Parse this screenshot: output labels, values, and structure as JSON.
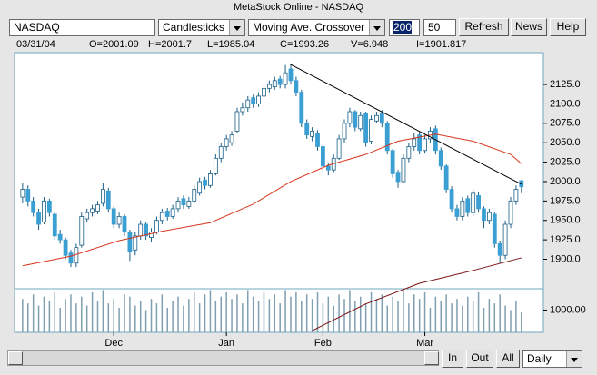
{
  "window": {
    "title": "MetaStock Online - NASDAQ",
    "symbol": "NASDAQ",
    "chart_style": "Candlesticks",
    "indicator": "Moving Ave. Crossover",
    "period_1": "200",
    "period_2": "50",
    "buttons": [
      "Refresh",
      "News",
      "Help"
    ],
    "zoom_buttons": [
      "In",
      "Out",
      "All"
    ],
    "interval": "Daily",
    "info": [
      "03/31/04",
      "O=2001.09",
      "H=2001.7",
      "L=1985.04",
      "C=1993.26",
      "V=6.948",
      "I=1901.817"
    ]
  },
  "chart_data": {
    "type": "candlestick",
    "up_color": "#ffffff",
    "down_color": "#3a9fd2",
    "xlim": [
      -1.5,
      97.1
    ],
    "xticks": [
      {
        "value": 17,
        "label": "Dec"
      },
      {
        "value": 38,
        "label": "Jan"
      },
      {
        "value": 56,
        "label": "Feb"
      },
      {
        "value": 75,
        "label": "Mar"
      }
    ],
    "ylim": [
      1862,
      2166
    ],
    "yticks": [
      {
        "value": 1900,
        "label": "1900.0"
      },
      {
        "value": 1925,
        "label": "1925.0"
      },
      {
        "value": 1950,
        "label": "1950.0"
      },
      {
        "value": 1975,
        "label": "1975.0"
      },
      {
        "value": 2000,
        "label": "2000.0"
      },
      {
        "value": 2025,
        "label": "2025.0"
      },
      {
        "value": 2050,
        "label": "2050.0"
      },
      {
        "value": 2075,
        "label": "2075.0"
      },
      {
        "value": 2100,
        "label": "2100.0"
      },
      {
        "value": 2125,
        "label": "2125.0"
      }
    ],
    "candles": [
      [
        1980,
        1998,
        1972,
        1990
      ],
      [
        1990,
        1995,
        1968,
        1975
      ],
      [
        1975,
        1980,
        1955,
        1960
      ],
      [
        1960,
        1965,
        1938,
        1945
      ],
      [
        1948,
        1980,
        1945,
        1975
      ],
      [
        1975,
        1978,
        1955,
        1960
      ],
      [
        1958,
        1962,
        1925,
        1930
      ],
      [
        1932,
        1938,
        1920,
        1925
      ],
      [
        1925,
        1928,
        1900,
        1905
      ],
      [
        1908,
        1912,
        1890,
        1895
      ],
      [
        1895,
        1920,
        1890,
        1915
      ],
      [
        1918,
        1960,
        1915,
        1955
      ],
      [
        1952,
        1965,
        1948,
        1960
      ],
      [
        1960,
        1970,
        1955,
        1965
      ],
      [
        1962,
        1975,
        1958,
        1970
      ],
      [
        1972,
        1998,
        1968,
        1990
      ],
      [
        1988,
        1992,
        1960,
        1965
      ],
      [
        1965,
        1968,
        1940,
        1945
      ],
      [
        1945,
        1960,
        1940,
        1955
      ],
      [
        1955,
        1958,
        1930,
        1935
      ],
      [
        1935,
        1938,
        1898,
        1910
      ],
      [
        1912,
        1935,
        1905,
        1930
      ],
      [
        1930,
        1950,
        1925,
        1945
      ],
      [
        1945,
        1948,
        1925,
        1930
      ],
      [
        1928,
        1940,
        1922,
        1935
      ],
      [
        1935,
        1955,
        1932,
        1950
      ],
      [
        1950,
        1965,
        1945,
        1960
      ],
      [
        1962,
        1966,
        1950,
        1955
      ],
      [
        1955,
        1970,
        1952,
        1965
      ],
      [
        1965,
        1980,
        1960,
        1975
      ],
      [
        1978,
        1982,
        1965,
        1970
      ],
      [
        1968,
        1980,
        1965,
        1975
      ],
      [
        1975,
        1995,
        1972,
        1990
      ],
      [
        1985,
        2005,
        1982,
        2000
      ],
      [
        2002,
        2006,
        1990,
        1995
      ],
      [
        1995,
        2015,
        1992,
        2010
      ],
      [
        2010,
        2035,
        2008,
        2030
      ],
      [
        2030,
        2050,
        2025,
        2045
      ],
      [
        2045,
        2060,
        2040,
        2055
      ],
      [
        2050,
        2065,
        2046,
        2060
      ],
      [
        2065,
        2095,
        2062,
        2090
      ],
      [
        2090,
        2102,
        2085,
        2095
      ],
      [
        2095,
        2110,
        2090,
        2105
      ],
      [
        2108,
        2112,
        2095,
        2100
      ],
      [
        2100,
        2115,
        2096,
        2110
      ],
      [
        2110,
        2125,
        2105,
        2120
      ],
      [
        2120,
        2130,
        2115,
        2125
      ],
      [
        2122,
        2135,
        2118,
        2130
      ],
      [
        2132,
        2136,
        2120,
        2125
      ],
      [
        2125,
        2150,
        2120,
        2140
      ],
      [
        2145,
        2150,
        2125,
        2130
      ],
      [
        2130,
        2135,
        2110,
        2115
      ],
      [
        2115,
        2118,
        2070,
        2075
      ],
      [
        2075,
        2080,
        2055,
        2060
      ],
      [
        2058,
        2070,
        2052,
        2065
      ],
      [
        2062,
        2066,
        2040,
        2045
      ],
      [
        2045,
        2048,
        2012,
        2020
      ],
      [
        2020,
        2024,
        2008,
        2015
      ],
      [
        2015,
        2035,
        2012,
        2030
      ],
      [
        2030,
        2060,
        2028,
        2055
      ],
      [
        2055,
        2080,
        2050,
        2075
      ],
      [
        2075,
        2095,
        2070,
        2090
      ],
      [
        2090,
        2092,
        2065,
        2070
      ],
      [
        2068,
        2090,
        2065,
        2085
      ],
      [
        2088,
        2090,
        2045,
        2050
      ],
      [
        2052,
        2085,
        2048,
        2080
      ],
      [
        2078,
        2090,
        2075,
        2085
      ],
      [
        2088,
        2092,
        2070,
        2075
      ],
      [
        2075,
        2078,
        2035,
        2040
      ],
      [
        2040,
        2042,
        2005,
        2010
      ],
      [
        2012,
        2015,
        1992,
        2000
      ],
      [
        2000,
        2035,
        1998,
        2030
      ],
      [
        2030,
        2050,
        2025,
        2045
      ],
      [
        2045,
        2062,
        2040,
        2055
      ],
      [
        2060,
        2064,
        2035,
        2040
      ],
      [
        2040,
        2060,
        2036,
        2055
      ],
      [
        2055,
        2070,
        2050,
        2065
      ],
      [
        2068,
        2072,
        2035,
        2040
      ],
      [
        2040,
        2044,
        2015,
        2020
      ],
      [
        2020,
        2022,
        1985,
        1990
      ],
      [
        1990,
        1994,
        1960,
        1965
      ],
      [
        1965,
        1970,
        1950,
        1955
      ],
      [
        1955,
        1980,
        1950,
        1975
      ],
      [
        1978,
        1982,
        1955,
        1960
      ],
      [
        1960,
        1990,
        1955,
        1985
      ],
      [
        1982,
        1986,
        1960,
        1965
      ],
      [
        1965,
        1968,
        1940,
        1950
      ],
      [
        1950,
        1965,
        1945,
        1960
      ],
      [
        1958,
        1960,
        1915,
        1920
      ],
      [
        1920,
        1924,
        1895,
        1905
      ],
      [
        1905,
        1950,
        1900,
        1945
      ],
      [
        1945,
        1980,
        1940,
        1975
      ],
      [
        1975,
        1995,
        1970,
        1990
      ],
      [
        2001.09,
        2001.7,
        1985.04,
        1993.26
      ]
    ],
    "overlays": [
      {
        "color": "#d8341c",
        "x": [
          0,
          9,
          18,
          26,
          35,
          43,
          50,
          57,
          64,
          70,
          77,
          84,
          91,
          93
        ],
        "values": [
          1891.5,
          1904,
          1924,
          1936,
          1947,
          1971,
          2000,
          2021,
          2035,
          2052,
          2061,
          2052,
          2035,
          2023
        ]
      },
      {
        "color": "#7a1010",
        "x": [
          54,
          64,
          74,
          84,
          93
        ],
        "values": [
          1808,
          1842.5,
          1869,
          1885.6,
          1901.817
        ]
      },
      {
        "color": "#000000",
        "x": [
          49.7,
          93
        ],
        "values": [
          2151.7,
          1996.5
        ]
      }
    ],
    "volume_color": "#7f9fb0",
    "volume_ylim": [
      0,
      1956
    ],
    "volume_yticks": [
      {
        "value": 1000,
        "label": "1000.00"
      }
    ],
    "volume": [
      1500,
      1300,
      1700,
      1200,
      1600,
      1400,
      1800,
      1100,
      1500,
      1700,
      1300,
      1600,
      1200,
      1800,
      1400,
      1900,
      1300,
      1500,
      1100,
      1700,
      1600,
      1200,
      1400,
      1000,
      1500,
      1300,
      1700,
      1100,
      1400,
      1600,
      1200,
      1500,
      1800,
      1300,
      1700,
      1900,
      1400,
      1600,
      1800,
      1500,
      1700,
      1300,
      1900,
      1600,
      1400,
      1800,
      1500,
      1700,
      1300,
      1900,
      1600,
      1800,
      1400,
      1700,
      1500,
      1800,
      1300,
      1600,
      1200,
      1700,
      1500,
      1900,
      1400,
      1600,
      1300,
      1800,
      1500,
      1700,
      1200,
      1600,
      1400,
      1900,
      1300,
      1700,
      1500,
      1800,
      1100,
      1600,
      1400,
      1700,
      1300,
      1500,
      1200,
      1600,
      1400,
      1800,
      1100,
      1500,
      1300,
      1700,
      1200,
      1000,
      1400,
      900
    ]
  }
}
